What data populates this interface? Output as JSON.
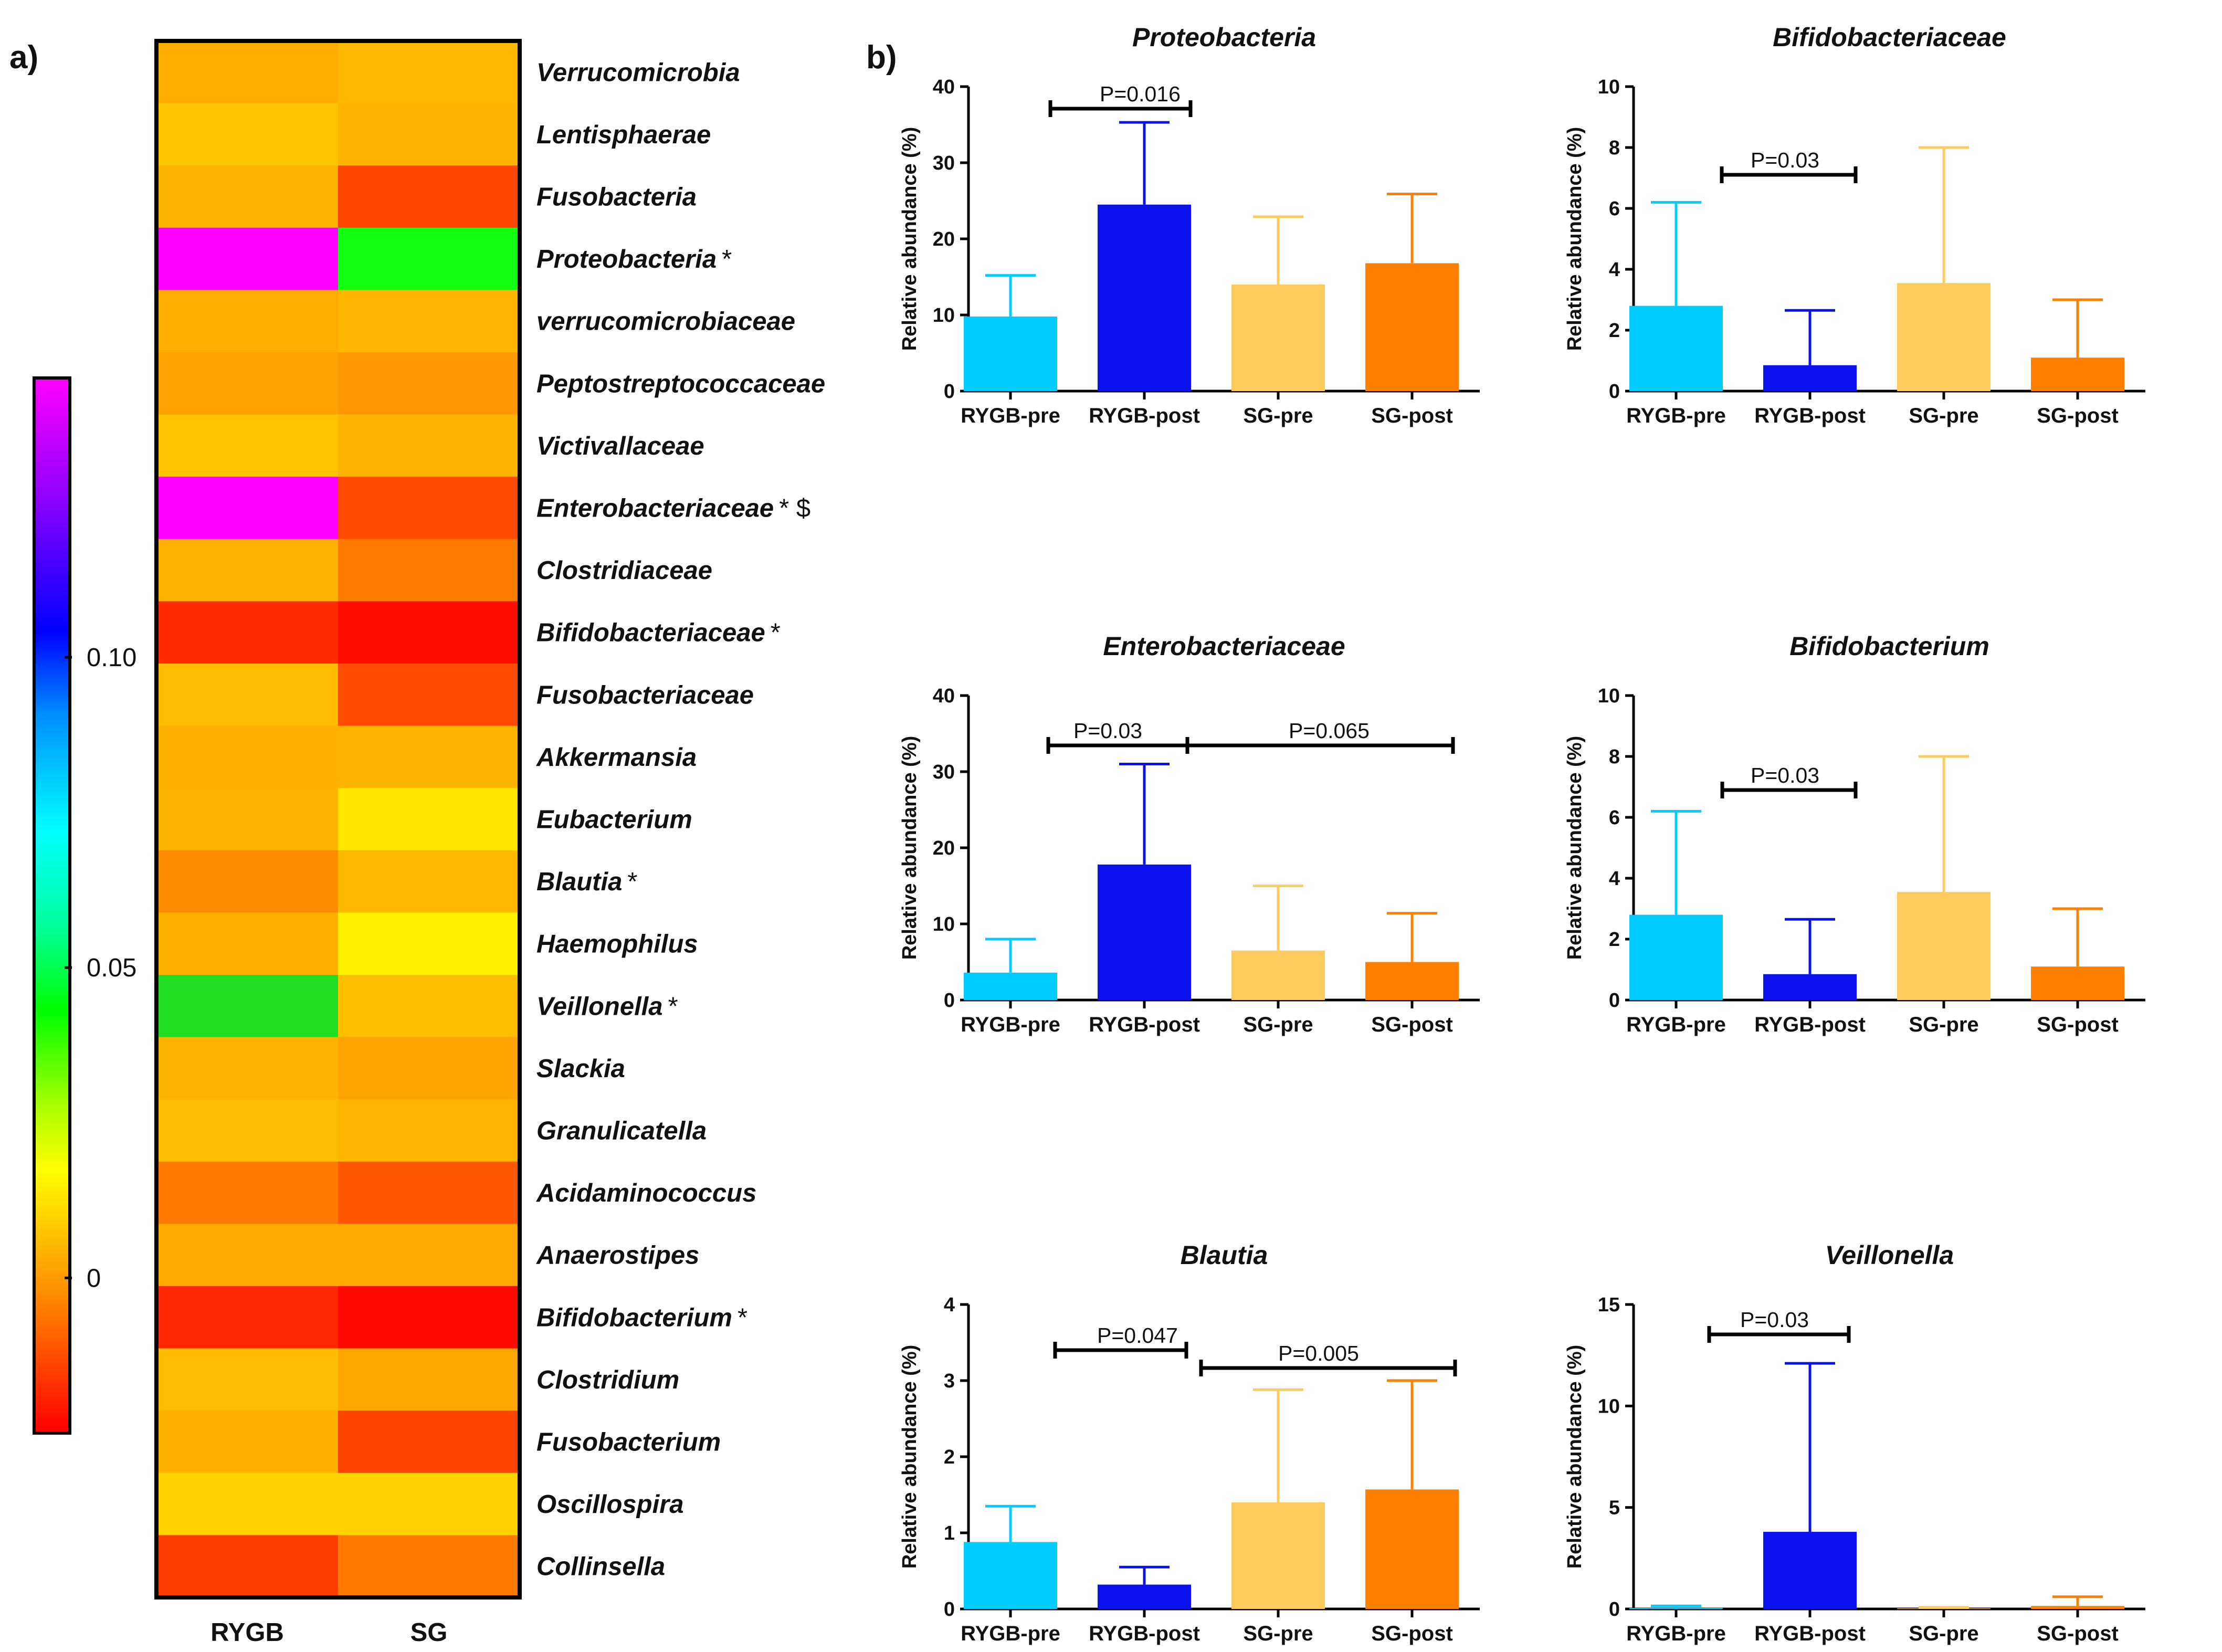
{
  "panel_labels": {
    "a": "a)",
    "b": "b)"
  },
  "chart_data": [
    {
      "type": "heatmap",
      "columns": [
        "RYGB",
        "SG"
      ],
      "rows": [
        {
          "name": "Verrucomicrobia",
          "mark": "",
          "colors": [
            "#FFAE00",
            "#FFBA00"
          ]
        },
        {
          "name": "Lentisphaerae",
          "mark": "",
          "colors": [
            "#FFC500",
            "#FFB400"
          ]
        },
        {
          "name": "Fusobacteria",
          "mark": "",
          "colors": [
            "#FFB400",
            "#FF4700"
          ]
        },
        {
          "name": "Proteobacteria",
          "mark": "*",
          "colors": [
            "#FF00FF",
            "#11FF11"
          ]
        },
        {
          "name": "verrucomicrobiaceae",
          "mark": "",
          "colors": [
            "#FFAD00",
            "#FFB600"
          ]
        },
        {
          "name": "Peptostreptococcaceae",
          "mark": "",
          "colors": [
            "#FFA100",
            "#FF9800"
          ]
        },
        {
          "name": "Victivallaceae",
          "mark": "",
          "colors": [
            "#FFC300",
            "#FFB500"
          ]
        },
        {
          "name": "Enterobacteriaceae",
          "mark": "* $",
          "colors": [
            "#FF00FF",
            "#FF4A00"
          ]
        },
        {
          "name": "Clostridiaceae",
          "mark": "",
          "colors": [
            "#FFB200",
            "#FF7C00"
          ]
        },
        {
          "name": "Bifidobacteriaceae",
          "mark": "*",
          "colors": [
            "#FF2A00",
            "#FF0E00"
          ]
        },
        {
          "name": "Fusobacteriaceae",
          "mark": "",
          "colors": [
            "#FFBC00",
            "#FF4C00"
          ]
        },
        {
          "name": "Akkermansia",
          "mark": "",
          "colors": [
            "#FFB100",
            "#FFB500"
          ]
        },
        {
          "name": "Eubacterium",
          "mark": "",
          "colors": [
            "#FFB500",
            "#FFE600"
          ]
        },
        {
          "name": "Blautia",
          "mark": "*",
          "colors": [
            "#FF8C00",
            "#FFBA00"
          ]
        },
        {
          "name": "Haemophilus",
          "mark": "",
          "colors": [
            "#FFB100",
            "#FFF100"
          ]
        },
        {
          "name": "Veillonella",
          "mark": "*",
          "colors": [
            "#22DD22",
            "#FFBE00"
          ]
        },
        {
          "name": "Slackia",
          "mark": "",
          "colors": [
            "#FFB500",
            "#FFA400"
          ]
        },
        {
          "name": "Granulicatella",
          "mark": "",
          "colors": [
            "#FFBD00",
            "#FFB600"
          ]
        },
        {
          "name": "Acidaminococcus",
          "mark": "",
          "colors": [
            "#FF7A00",
            "#FF5600"
          ]
        },
        {
          "name": "Anaerostipes",
          "mark": "",
          "colors": [
            "#FFA800",
            "#FFA800"
          ]
        },
        {
          "name": "Bifidobacterium",
          "mark": "*",
          "colors": [
            "#FF2800",
            "#FF0A00"
          ]
        },
        {
          "name": "Clostridium",
          "mark": "",
          "colors": [
            "#FFBC00",
            "#FFA600"
          ]
        },
        {
          "name": "Fusobacterium",
          "mark": "",
          "colors": [
            "#FFB100",
            "#FF4400"
          ]
        },
        {
          "name": "Oscillospira",
          "mark": "",
          "colors": [
            "#FFD200",
            "#FFD200"
          ]
        },
        {
          "name": "Collinsella",
          "mark": "",
          "colors": [
            "#FF3C00",
            "#FF7A00"
          ]
        }
      ],
      "colorbar": {
        "range": [
          -0.025,
          0.145
        ],
        "ticks": [
          {
            "value": 0,
            "label": "0"
          },
          {
            "value": 0.05,
            "label": "0.05"
          },
          {
            "value": 0.1,
            "label": "0.10"
          }
        ]
      }
    },
    {
      "type": "bar",
      "title": "Proteobacteria",
      "ylabel": "Relative abundance (%)",
      "categories": [
        "RYGB-pre",
        "RYGB-post",
        "SG-pre",
        "SG-post"
      ],
      "values": [
        9.8,
        24.5,
        14.0,
        16.8
      ],
      "errors": [
        15.2,
        35.3,
        22.9,
        25.9
      ],
      "ylim": [
        0,
        40
      ],
      "yticks": [
        "0",
        "10",
        "20",
        "30",
        "40"
      ],
      "colors": [
        "#00CCFF",
        "#0A10EE",
        "#FECB5E",
        "#FF7F00"
      ],
      "comparisons": [
        {
          "from": 0,
          "to": 1,
          "label": "P=0.016"
        }
      ]
    },
    {
      "type": "bar",
      "title": "Bifidobacteriaceae",
      "ylabel": "Relative abundance (%)",
      "categories": [
        "RYGB-pre",
        "RYGB-post",
        "SG-pre",
        "SG-post"
      ],
      "values": [
        2.8,
        0.85,
        3.55,
        1.1
      ],
      "errors": [
        6.2,
        2.65,
        8.0,
        3.0
      ],
      "ylim": [
        0,
        10
      ],
      "yticks": [
        "0",
        "2",
        "4",
        "6",
        "8",
        "10"
      ],
      "colors": [
        "#00CCFF",
        "#0A10EE",
        "#FECB5E",
        "#FF7F00"
      ],
      "comparisons": [
        {
          "from": 0,
          "to": 1,
          "label": "P=0.03"
        }
      ]
    },
    {
      "type": "bar",
      "title": "Enterobacteriaceae",
      "ylabel": "Relative abundance (%)",
      "categories": [
        "RYGB-pre",
        "RYGB-post",
        "SG-pre",
        "SG-post"
      ],
      "values": [
        3.6,
        17.8,
        6.5,
        5.0
      ],
      "errors": [
        8.0,
        31.0,
        15.0,
        11.4
      ],
      "ylim": [
        0,
        40
      ],
      "yticks": [
        "0",
        "10",
        "20",
        "30",
        "40"
      ],
      "colors": [
        "#00CCFF",
        "#0A10EE",
        "#FECB5E",
        "#FF7F00"
      ],
      "comparisons": [
        {
          "from": 0,
          "to": 1,
          "label": "P=0.03"
        },
        {
          "from": 1,
          "to": 3,
          "label": "P=0.065"
        }
      ]
    },
    {
      "type": "bar",
      "title": "Bifidobacterium",
      "ylabel": "Relative abundance (%)",
      "categories": [
        "RYGB-pre",
        "RYGB-post",
        "SG-pre",
        "SG-post"
      ],
      "values": [
        2.8,
        0.85,
        3.55,
        1.1
      ],
      "errors": [
        6.2,
        2.65,
        8.0,
        3.0
      ],
      "ylim": [
        0,
        10
      ],
      "yticks": [
        "0",
        "2",
        "4",
        "6",
        "8",
        "10"
      ],
      "colors": [
        "#00CCFF",
        "#0A10EE",
        "#FECB5E",
        "#FF7F00"
      ],
      "comparisons": [
        {
          "from": 0,
          "to": 1,
          "label": "P=0.03"
        }
      ]
    },
    {
      "type": "bar",
      "title": "Blautia",
      "ylabel": "Relative abundance (%)",
      "categories": [
        "RYGB-pre",
        "RYGB-post",
        "SG-pre",
        "SG-post"
      ],
      "values": [
        0.88,
        0.32,
        1.4,
        1.57
      ],
      "errors": [
        1.35,
        0.55,
        2.88,
        3.0
      ],
      "ylim": [
        0,
        4
      ],
      "yticks": [
        "0",
        "1",
        "2",
        "3",
        "4"
      ],
      "colors": [
        "#00CCFF",
        "#0A10EE",
        "#FECB5E",
        "#FF7F00"
      ],
      "comparisons": [
        {
          "from": 0,
          "to": 1,
          "label": "P=0.047"
        },
        {
          "from": 1,
          "to": 3,
          "label": "P=0.005"
        }
      ]
    },
    {
      "type": "bar",
      "title": "Veillonella",
      "ylabel": "Relative abundance (%)",
      "categories": [
        "RYGB-pre",
        "RYGB-post",
        "SG-pre",
        "SG-post"
      ],
      "values": [
        0.05,
        3.8,
        0.03,
        0.15
      ],
      "errors": [
        0.15,
        12.1,
        0.08,
        0.6
      ],
      "ylim": [
        0,
        15
      ],
      "yticks": [
        "0",
        "5",
        "10",
        "15"
      ],
      "colors": [
        "#00CCFF",
        "#0A10EE",
        "#FECB5E",
        "#FF7F00"
      ],
      "comparisons": [
        {
          "from": 0,
          "to": 1,
          "label": "P=0.03"
        }
      ]
    }
  ]
}
